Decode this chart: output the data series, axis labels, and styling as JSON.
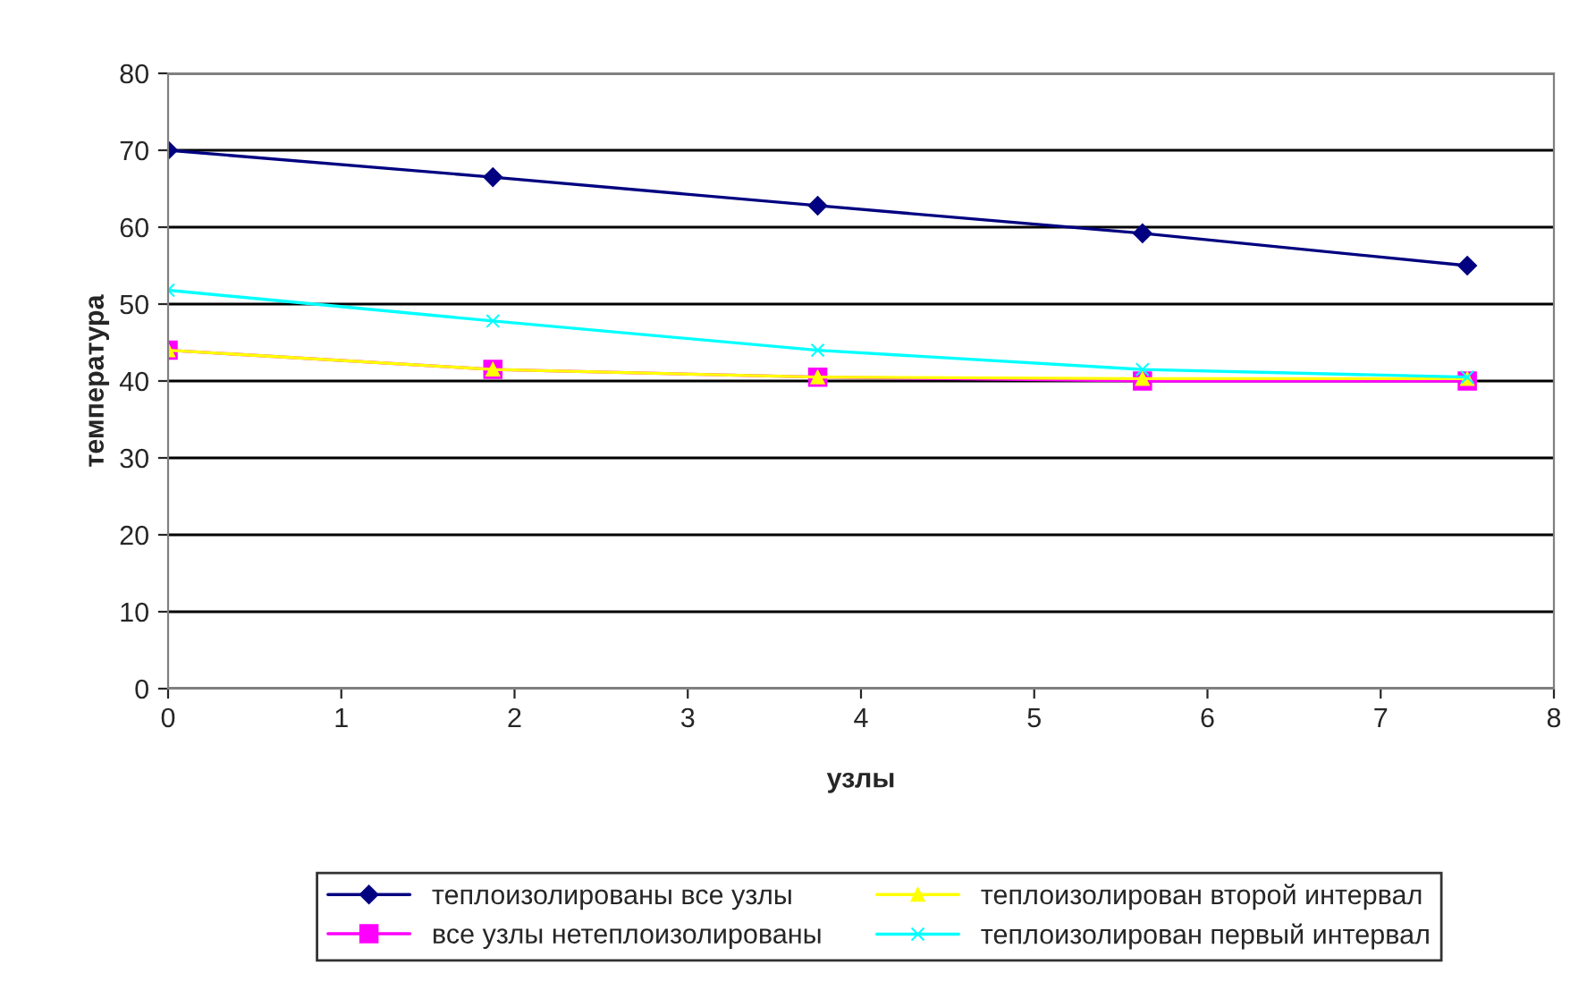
{
  "chart_data": {
    "type": "line",
    "xlabel": "узлы",
    "ylabel": "температура",
    "x": [
      0,
      1.875,
      3.75,
      5.625,
      7.5
    ],
    "series": [
      {
        "name": "теплоизолированы все узлы",
        "color": "#000080",
        "marker": "diamond",
        "values": [
          70,
          66.5,
          62.8,
          59.2,
          55
        ]
      },
      {
        "name": "все узлы нетеплоизолированы",
        "color": "#ff00ff",
        "marker": "square",
        "values": [
          44,
          41.5,
          40.5,
          40,
          40
        ]
      },
      {
        "name": "теплоизолирован второй интервал",
        "color": "#ffff00",
        "marker": "triangle",
        "values": [
          44,
          41.5,
          40.5,
          40.3,
          40.3
        ]
      },
      {
        "name": "теплоизолирован первый интервал",
        "color": "#00ffff",
        "marker": "cross",
        "values": [
          51.8,
          47.8,
          44,
          41.5,
          40.5
        ]
      }
    ],
    "xlim": [
      0,
      8
    ],
    "xticks": [
      0,
      1,
      2,
      3,
      4,
      5,
      6,
      7,
      8
    ],
    "ylim": [
      0,
      80
    ],
    "yticks": [
      0,
      10,
      20,
      30,
      40,
      50,
      60,
      70,
      80
    ],
    "grid": "y",
    "legend": "bottom"
  }
}
